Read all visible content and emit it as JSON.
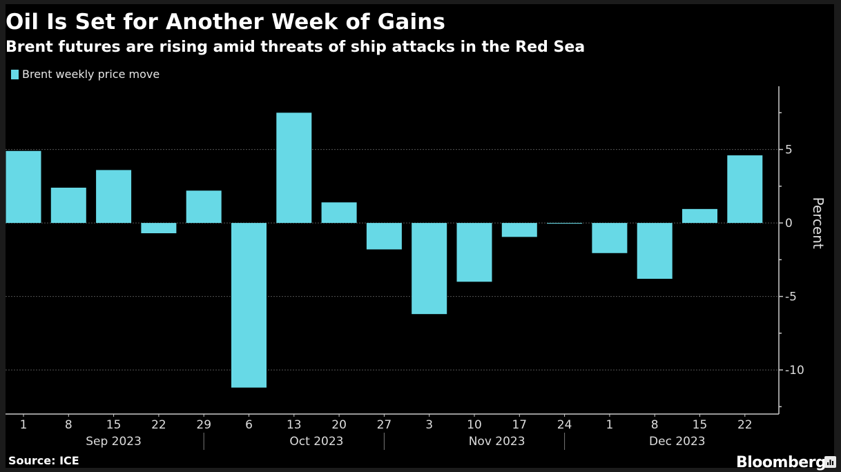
{
  "chart_data": {
    "type": "bar",
    "title": "Oil Is Set for Another Week of Gains",
    "subtitle": "Brent futures are rising amid threats of ship attacks in the Red Sea",
    "legend": [
      "Brent weekly price move"
    ],
    "legend_position": "top-left",
    "series": [
      {
        "name": "Brent weekly price move",
        "color": "#67d9e6",
        "values": [
          4.9,
          2.4,
          3.6,
          -0.7,
          2.2,
          -11.2,
          7.5,
          1.4,
          -1.8,
          -6.2,
          -4.0,
          -0.95,
          -0.05,
          -2.05,
          -3.8,
          0.95,
          4.6
        ]
      }
    ],
    "categories": [
      "1",
      "8",
      "15",
      "22",
      "29",
      "6",
      "13",
      "20",
      "27",
      "3",
      "10",
      "17",
      "24",
      "1",
      "8",
      "15",
      "22"
    ],
    "month_groups": [
      {
        "label": "Sep 2023",
        "start": 0,
        "end": 4
      },
      {
        "label": "Oct 2023",
        "start": 5,
        "end": 8
      },
      {
        "label": "Nov 2023",
        "start": 9,
        "end": 12
      },
      {
        "label": "Dec 2023",
        "start": 13,
        "end": 16
      }
    ],
    "xlabel": "",
    "ylabel": "Percent",
    "y_axis_side": "right",
    "ylim": [
      -13,
      9.3
    ],
    "yticks": [
      5,
      0,
      -5,
      -10
    ],
    "grid": true
  },
  "footer": {
    "source": "Source: ICE",
    "brand": "Bloomberg"
  }
}
